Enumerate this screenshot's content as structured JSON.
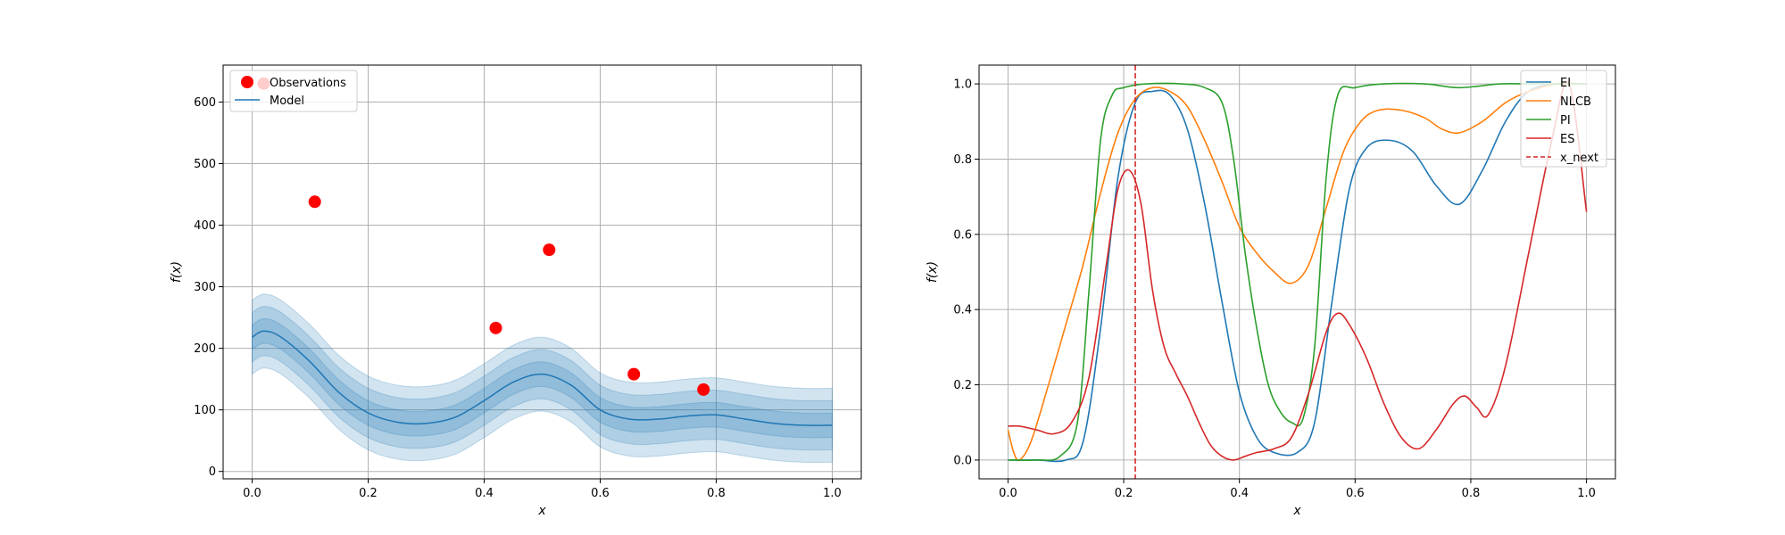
{
  "chart_data": [
    {
      "type": "scatter",
      "xlabel": "x",
      "ylabel": "f(x)",
      "xlim": [
        -0.05,
        1.05
      ],
      "ylim": [
        -12,
        660
      ],
      "xticks": [
        "0.0",
        "0.2",
        "0.4",
        "0.6",
        "0.8",
        "1.0"
      ],
      "yticks": [
        "0",
        "100",
        "200",
        "300",
        "400",
        "500",
        "600"
      ],
      "grid": true,
      "legend_placement": "upper-left",
      "legend": [
        "Observations",
        "Model"
      ],
      "observations": {
        "name": "Observations",
        "color": "#ff0000",
        "x": [
          0.02,
          0.108,
          0.42,
          0.512,
          0.658,
          0.778
        ],
        "y": [
          630,
          438,
          233,
          360,
          158,
          133
        ]
      },
      "model": {
        "name": "Model",
        "color": "#1f77b4",
        "x": [
          0.0,
          0.02,
          0.05,
          0.1,
          0.15,
          0.2,
          0.25,
          0.3,
          0.35,
          0.4,
          0.45,
          0.5,
          0.55,
          0.6,
          0.65,
          0.7,
          0.75,
          0.8,
          0.85,
          0.9,
          0.95,
          1.0
        ],
        "mean": [
          218,
          228,
          218,
          178,
          128,
          95,
          80,
          78,
          88,
          115,
          145,
          158,
          140,
          100,
          85,
          85,
          90,
          92,
          85,
          78,
          75,
          75
        ],
        "band_widths": [
          60,
          40,
          20
        ]
      }
    },
    {
      "type": "line",
      "xlabel": "x",
      "ylabel": "f(x)",
      "xlim": [
        -0.05,
        1.05
      ],
      "ylim": [
        -0.05,
        1.05
      ],
      "xticks": [
        "0.0",
        "0.2",
        "0.4",
        "0.6",
        "0.8",
        "1.0"
      ],
      "yticks": [
        "0.0",
        "0.2",
        "0.4",
        "0.6",
        "0.8",
        "1.0"
      ],
      "grid": true,
      "legend_placement": "upper-right",
      "x_next": {
        "name": "x_next",
        "x": 0.22,
        "color": "#d62728"
      },
      "series": [
        {
          "name": "EI",
          "color": "#1f77b4",
          "x": [
            0,
            0.05,
            0.1,
            0.13,
            0.16,
            0.19,
            0.22,
            0.25,
            0.28,
            0.31,
            0.34,
            0.37,
            0.4,
            0.43,
            0.46,
            0.5,
            0.53,
            0.56,
            0.59,
            0.62,
            0.66,
            0.7,
            0.74,
            0.78,
            0.82,
            0.86,
            0.9,
            0.95,
            1.0
          ],
          "y": [
            0,
            0,
            0,
            0.05,
            0.35,
            0.75,
            0.95,
            0.98,
            0.97,
            0.88,
            0.68,
            0.42,
            0.18,
            0.06,
            0.02,
            0.02,
            0.1,
            0.42,
            0.72,
            0.83,
            0.85,
            0.82,
            0.73,
            0.68,
            0.77,
            0.9,
            0.98,
            1.0,
            1.0
          ]
        },
        {
          "name": "NLCB",
          "color": "#ff7f0e",
          "x": [
            0,
            0.01,
            0.02,
            0.04,
            0.07,
            0.1,
            0.13,
            0.16,
            0.19,
            0.22,
            0.25,
            0.28,
            0.31,
            0.34,
            0.37,
            0.4,
            0.43,
            0.46,
            0.49,
            0.52,
            0.55,
            0.58,
            0.61,
            0.64,
            0.68,
            0.72,
            0.75,
            0.78,
            0.82,
            0.86,
            0.9,
            0.95,
            1.0
          ],
          "y": [
            0.08,
            0.02,
            0.0,
            0.05,
            0.2,
            0.36,
            0.52,
            0.71,
            0.87,
            0.96,
            0.99,
            0.98,
            0.94,
            0.85,
            0.74,
            0.62,
            0.55,
            0.5,
            0.47,
            0.52,
            0.67,
            0.82,
            0.9,
            0.93,
            0.93,
            0.91,
            0.88,
            0.87,
            0.9,
            0.95,
            0.98,
            1.0,
            1.0
          ]
        },
        {
          "name": "PI",
          "color": "#2ca02c",
          "x": [
            0,
            0.05,
            0.09,
            0.12,
            0.14,
            0.16,
            0.18,
            0.2,
            0.24,
            0.3,
            0.34,
            0.37,
            0.39,
            0.41,
            0.43,
            0.45,
            0.47,
            0.49,
            0.51,
            0.53,
            0.55,
            0.57,
            0.6,
            0.65,
            0.72,
            0.78,
            0.85,
            0.9,
            0.95,
            1.0
          ],
          "y": [
            0,
            0,
            0.01,
            0.1,
            0.45,
            0.85,
            0.97,
            0.99,
            1.0,
            1.0,
            0.99,
            0.95,
            0.8,
            0.55,
            0.35,
            0.2,
            0.13,
            0.1,
            0.11,
            0.3,
            0.75,
            0.97,
            0.99,
            1.0,
            1.0,
            0.99,
            1.0,
            1.0,
            1.0,
            1.0
          ]
        },
        {
          "name": "ES",
          "color": "#d62728",
          "x": [
            0,
            0.02,
            0.05,
            0.08,
            0.11,
            0.14,
            0.17,
            0.19,
            0.21,
            0.23,
            0.25,
            0.27,
            0.29,
            0.31,
            0.33,
            0.35,
            0.37,
            0.39,
            0.41,
            0.43,
            0.46,
            0.49,
            0.52,
            0.55,
            0.57,
            0.59,
            0.62,
            0.65,
            0.68,
            0.71,
            0.74,
            0.77,
            0.79,
            0.81,
            0.83,
            0.86,
            0.9,
            0.94,
            0.97,
            1.0
          ],
          "y": [
            0.09,
            0.09,
            0.08,
            0.07,
            0.1,
            0.22,
            0.52,
            0.72,
            0.77,
            0.68,
            0.45,
            0.3,
            0.23,
            0.17,
            0.1,
            0.04,
            0.01,
            0.0,
            0.01,
            0.02,
            0.03,
            0.06,
            0.18,
            0.34,
            0.39,
            0.36,
            0.27,
            0.15,
            0.06,
            0.03,
            0.08,
            0.15,
            0.17,
            0.14,
            0.12,
            0.25,
            0.55,
            0.85,
            1.0,
            0.66
          ]
        }
      ]
    }
  ]
}
